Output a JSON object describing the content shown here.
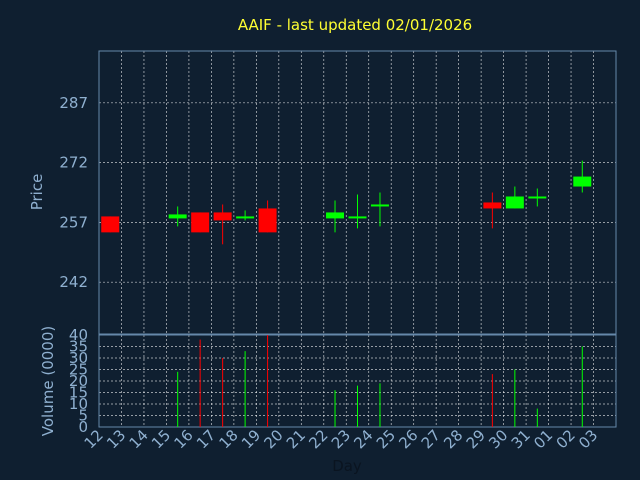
{
  "chart_data": {
    "type": "candlestick",
    "title": "AAIF - last updated 02/01/2026",
    "xlabel": "Day",
    "price_ylabel": "Price",
    "volume_ylabel": "Volume (0000)",
    "x_ticks": [
      "12",
      "13",
      "14",
      "15",
      "16",
      "17",
      "18",
      "19",
      "20",
      "21",
      "22",
      "23",
      "24",
      "25",
      "26",
      "27",
      "28",
      "29",
      "30",
      "31",
      "01",
      "02",
      "03"
    ],
    "price_ticks": [
      242,
      257,
      272,
      287
    ],
    "price_range": [
      229,
      300
    ],
    "volume_ticks": [
      0,
      5,
      10,
      15,
      20,
      25,
      30,
      35,
      40
    ],
    "volume_range": [
      0,
      40
    ],
    "colors": {
      "up": "#00ff00",
      "down": "#ff0000",
      "grid": "#ffffff",
      "frame": "#6688aa"
    },
    "candles": [
      {
        "day": "12",
        "open": 258.5,
        "close": 254.5,
        "high": 258.5,
        "low": 254.5,
        "volume": 0
      },
      {
        "day": "15",
        "open": 258.0,
        "close": 259.0,
        "high": 261.0,
        "low": 256.0,
        "volume": 24
      },
      {
        "day": "16",
        "open": 259.5,
        "close": 254.5,
        "high": 259.5,
        "low": 254.5,
        "volume": 38
      },
      {
        "day": "17",
        "open": 259.5,
        "close": 257.5,
        "high": 261.5,
        "low": 251.5,
        "volume": 30
      },
      {
        "day": "18",
        "open": 258.0,
        "close": 258.5,
        "high": 260.0,
        "low": 257.5,
        "volume": 33
      },
      {
        "day": "19",
        "open": 260.5,
        "close": 254.5,
        "high": 262.5,
        "low": 254.5,
        "volume": 40
      },
      {
        "day": "22",
        "open": 258.0,
        "close": 259.5,
        "high": 262.5,
        "low": 254.5,
        "volume": 16
      },
      {
        "day": "23",
        "open": 258.0,
        "close": 258.5,
        "high": 264.0,
        "low": 255.5,
        "volume": 18
      },
      {
        "day": "24",
        "open": 261.0,
        "close": 261.5,
        "high": 264.5,
        "low": 256.0,
        "volume": 19
      },
      {
        "day": "29",
        "open": 262.0,
        "close": 260.5,
        "high": 264.5,
        "low": 255.5,
        "volume": 23
      },
      {
        "day": "30",
        "open": 260.5,
        "close": 263.5,
        "high": 266.0,
        "low": 260.5,
        "volume": 25
      },
      {
        "day": "31",
        "open": 263.0,
        "close": 263.5,
        "high": 265.5,
        "low": 261.0,
        "volume": 8
      },
      {
        "day": "02",
        "open": 266.0,
        "close": 268.5,
        "high": 272.5,
        "low": 264.5,
        "volume": 35
      }
    ]
  }
}
